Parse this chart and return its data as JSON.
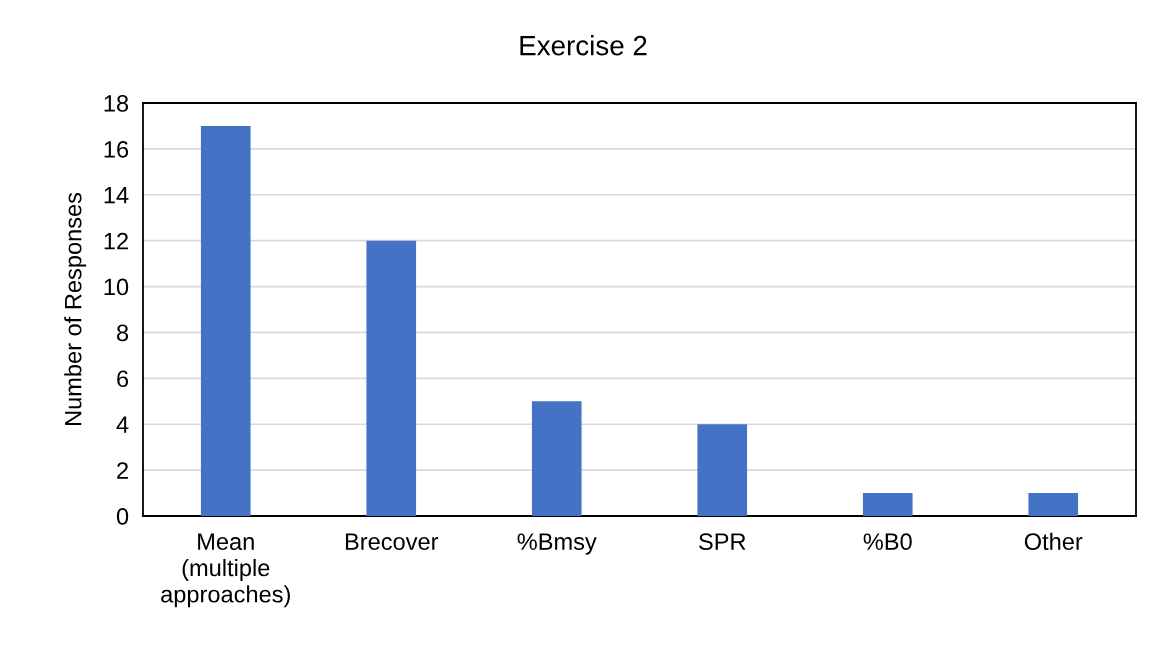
{
  "chart_data": {
    "type": "bar",
    "title": "Exercise 2",
    "ylabel": "Number of Responses",
    "categories": [
      "Mean\n(multiple\napproaches)",
      "Brecover",
      "%Bmsy",
      "SPR",
      "%B0",
      "Other"
    ],
    "values": [
      17,
      12,
      5,
      4,
      1,
      1
    ],
    "color": "#4472c4",
    "ylim": [
      0,
      18
    ],
    "yticks": [
      0,
      2,
      4,
      6,
      8,
      10,
      12,
      14,
      16,
      18
    ],
    "grid": "y"
  }
}
